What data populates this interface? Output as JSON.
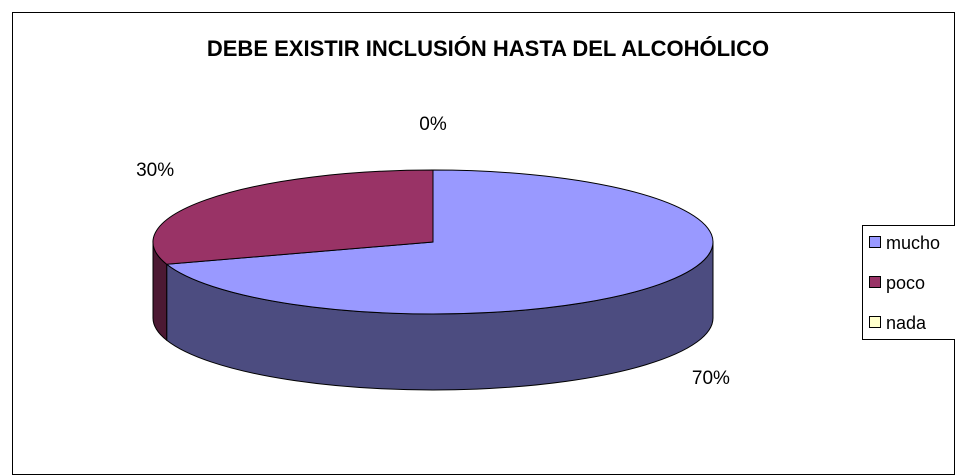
{
  "chart_data": {
    "type": "pie",
    "style": "3d",
    "title": "DEBE EXISTIR INCLUSIÓN HASTA DEL ALCOHÓLICO",
    "categories": [
      "mucho",
      "poco",
      "nada"
    ],
    "values": [
      70,
      30,
      0
    ],
    "data_labels": [
      "70%",
      "30%",
      "0%"
    ],
    "colors": {
      "mucho": {
        "top": "#9999FF",
        "side": "#4C4C80"
      },
      "poco": {
        "top": "#993366",
        "side": "#4C1933"
      },
      "nada": {
        "top": "#FFFFCC",
        "side": "#80806A"
      }
    },
    "legend": {
      "position": "right",
      "items": [
        "mucho",
        "poco",
        "nada"
      ]
    }
  }
}
